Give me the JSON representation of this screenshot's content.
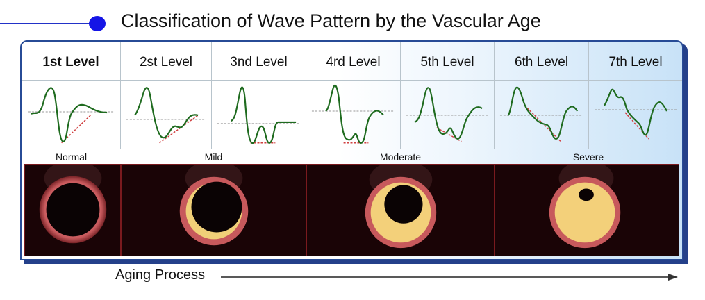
{
  "title": "Classification of Wave Pattern by the Vascular Age",
  "levels": [
    {
      "label": "1st Level"
    },
    {
      "label": "2st Level"
    },
    {
      "label": "3nd Level"
    },
    {
      "label": "4rd Level"
    },
    {
      "label": "5th Level"
    },
    {
      "label": "6th Level"
    },
    {
      "label": "7th Level"
    }
  ],
  "severity": {
    "normal": "Normal",
    "mild": "Mild",
    "moderate": "Moderate",
    "severe": "Severe"
  },
  "aging_label": "Aging Process",
  "colors": {
    "wave": "#1f6b1f",
    "guide": "#d04040",
    "baseline": "#999999",
    "vessel_wall": "#c7595c",
    "plaque": "#f5cf74",
    "accent_blue": "#1515e6"
  }
}
